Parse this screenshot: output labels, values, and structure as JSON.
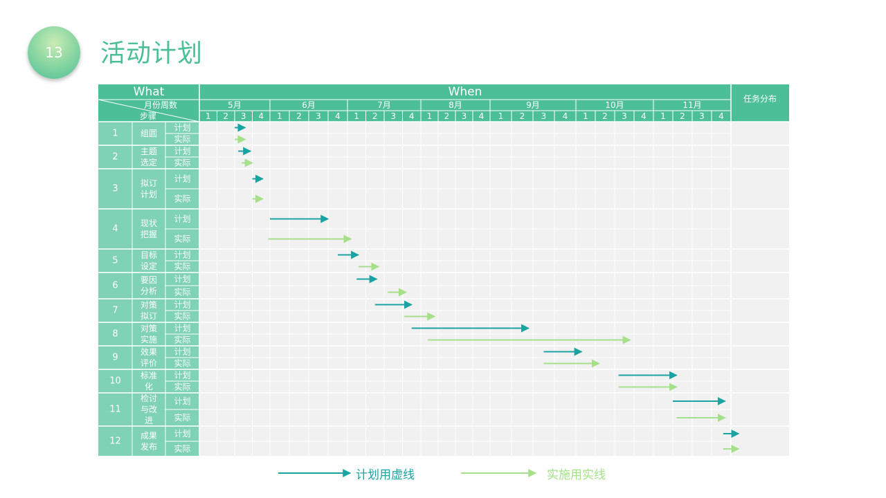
{
  "slide": {
    "number": "13",
    "title": "活动计划"
  },
  "table": {
    "what_label": "What",
    "when_label": "When",
    "assign_label": "任务分布",
    "header_top": "月份周数",
    "header_bottom": "步骤",
    "months": [
      "5月",
      "6月",
      "7月",
      "8月",
      "9月",
      "10月",
      "11月"
    ],
    "weeks": [
      "1",
      "2",
      "3",
      "4"
    ],
    "plan_label": "计划",
    "actual_label": "实际"
  },
  "chart_data": {
    "type": "table",
    "time_unit": "week",
    "months": [
      "5月",
      "6月",
      "7月",
      "8月",
      "9月",
      "10月",
      "11月"
    ],
    "steps": [
      {
        "no": "1",
        "name": "组圆",
        "plan": [
          2,
          2.6
        ],
        "actual": [
          2,
          2.6
        ]
      },
      {
        "no": "2",
        "name": "主题选定",
        "plan": [
          2.2,
          2.9
        ],
        "actual": [
          2.4,
          3.0
        ]
      },
      {
        "no": "3",
        "name": "拟订计划",
        "plan": [
          3.0,
          3.6
        ],
        "actual": [
          3.0,
          3.6
        ]
      },
      {
        "no": "4",
        "name": "现状把握",
        "plan": [
          4.0,
          7.0
        ],
        "actual": [
          3.9,
          8.2
        ]
      },
      {
        "no": "5",
        "name": "目标设定",
        "plan": [
          7.5,
          8.6
        ],
        "actual": [
          8.6,
          9.7
        ]
      },
      {
        "no": "6",
        "name": "要因分析",
        "plan": [
          8.5,
          9.6
        ],
        "actual": [
          10.2,
          11.2
        ]
      },
      {
        "no": "7",
        "name": "对策拟订",
        "plan": [
          9.5,
          11.5
        ],
        "actual": [
          11.1,
          12.8
        ]
      },
      {
        "no": "8",
        "name": "对策实施",
        "plan": [
          11.5,
          17.8
        ],
        "actual": [
          12.4,
          22.8
        ]
      },
      {
        "no": "9",
        "name": "效果评价",
        "plan": [
          18.5,
          20.3
        ],
        "actual": [
          18.5,
          21.2
        ]
      },
      {
        "no": "10",
        "name": "标准化",
        "plan": [
          22.2,
          25.2
        ],
        "actual": [
          22.2,
          25.2
        ]
      },
      {
        "no": "11",
        "name": "检讨与改进",
        "plan": [
          25.0,
          27.7
        ],
        "actual": [
          25.2,
          27.7
        ]
      },
      {
        "no": "12",
        "name": "成果发布",
        "plan": [
          27.6,
          28.4
        ],
        "actual": [
          27.6,
          28.4
        ]
      }
    ]
  },
  "legend": {
    "plan_text": "计划用虚线",
    "actual_text": "实施用实线",
    "plan_color": "#1aa3a3",
    "actual_color": "#a6e08a"
  },
  "colors": {
    "header": "#4dbf98",
    "left_col": "#7fd2b5",
    "cell": "#f1f1f1",
    "grid": "#ffffff"
  }
}
